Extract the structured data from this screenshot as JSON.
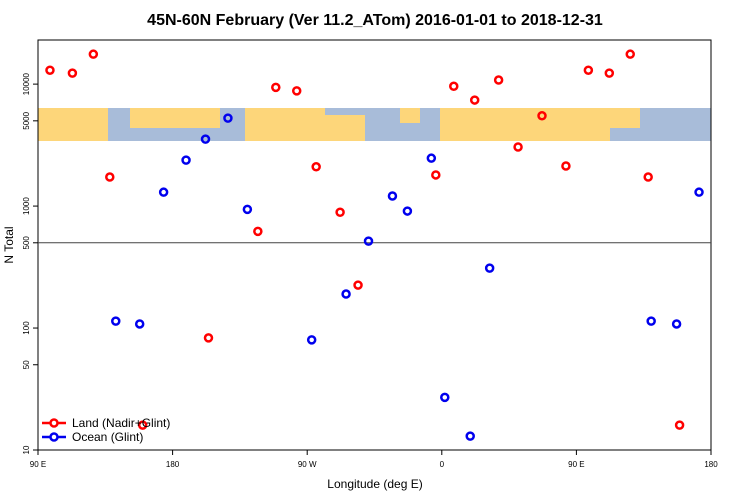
{
  "chart_data": {
    "type": "scatter",
    "title": "45N-60N February (Ver 11.2_ATom)   2016-01-01 to 2018-12-31",
    "x_label": "Longitude (deg E)",
    "y_label": "N Total",
    "log_y": true,
    "xlim": [
      -270,
      180
    ],
    "xticks": [
      {
        "value": -270,
        "label": "90 E"
      },
      {
        "value": -180,
        "label": "180"
      },
      {
        "value": -90,
        "label": "90 W"
      },
      0,
      {
        "value": 90,
        "label": "90 E"
      },
      180
    ],
    "ylim": [
      10,
      23000
    ],
    "yticks": [
      10,
      50,
      100,
      500,
      1000,
      5000,
      10000
    ],
    "reference_line": 500,
    "legend_position": "lower left",
    "series": [
      {
        "name": "Land (Nadir+Glint)",
        "color": "#ff0000",
        "x": [
          -262,
          -247,
          -233,
          -222,
          -200,
          -156,
          -123,
          -111,
          -97,
          -84,
          -68,
          -56,
          -4,
          8,
          22,
          38,
          51,
          67,
          83,
          98,
          112,
          126,
          138,
          159
        ],
        "values": [
          13000,
          12300,
          17600,
          1730,
          16,
          83,
          620,
          9400,
          8800,
          2100,
          890,
          225,
          1800,
          9600,
          7400,
          10800,
          3050,
          5500,
          2130,
          13000,
          12300,
          17600,
          1730,
          16
        ]
      },
      {
        "name": "Ocean (Glint)",
        "color": "#0000ee",
        "x": [
          -218,
          -202,
          -186,
          -171,
          -158,
          -143,
          -130,
          -87,
          -64,
          -49,
          -33,
          -23,
          -7,
          2,
          19,
          32,
          140,
          157,
          172
        ],
        "values": [
          114,
          108,
          1300,
          2380,
          3540,
          5260,
          940,
          80,
          190,
          516,
          1210,
          910,
          2470,
          27,
          13,
          310,
          114,
          108,
          1300
        ]
      }
    ]
  }
}
